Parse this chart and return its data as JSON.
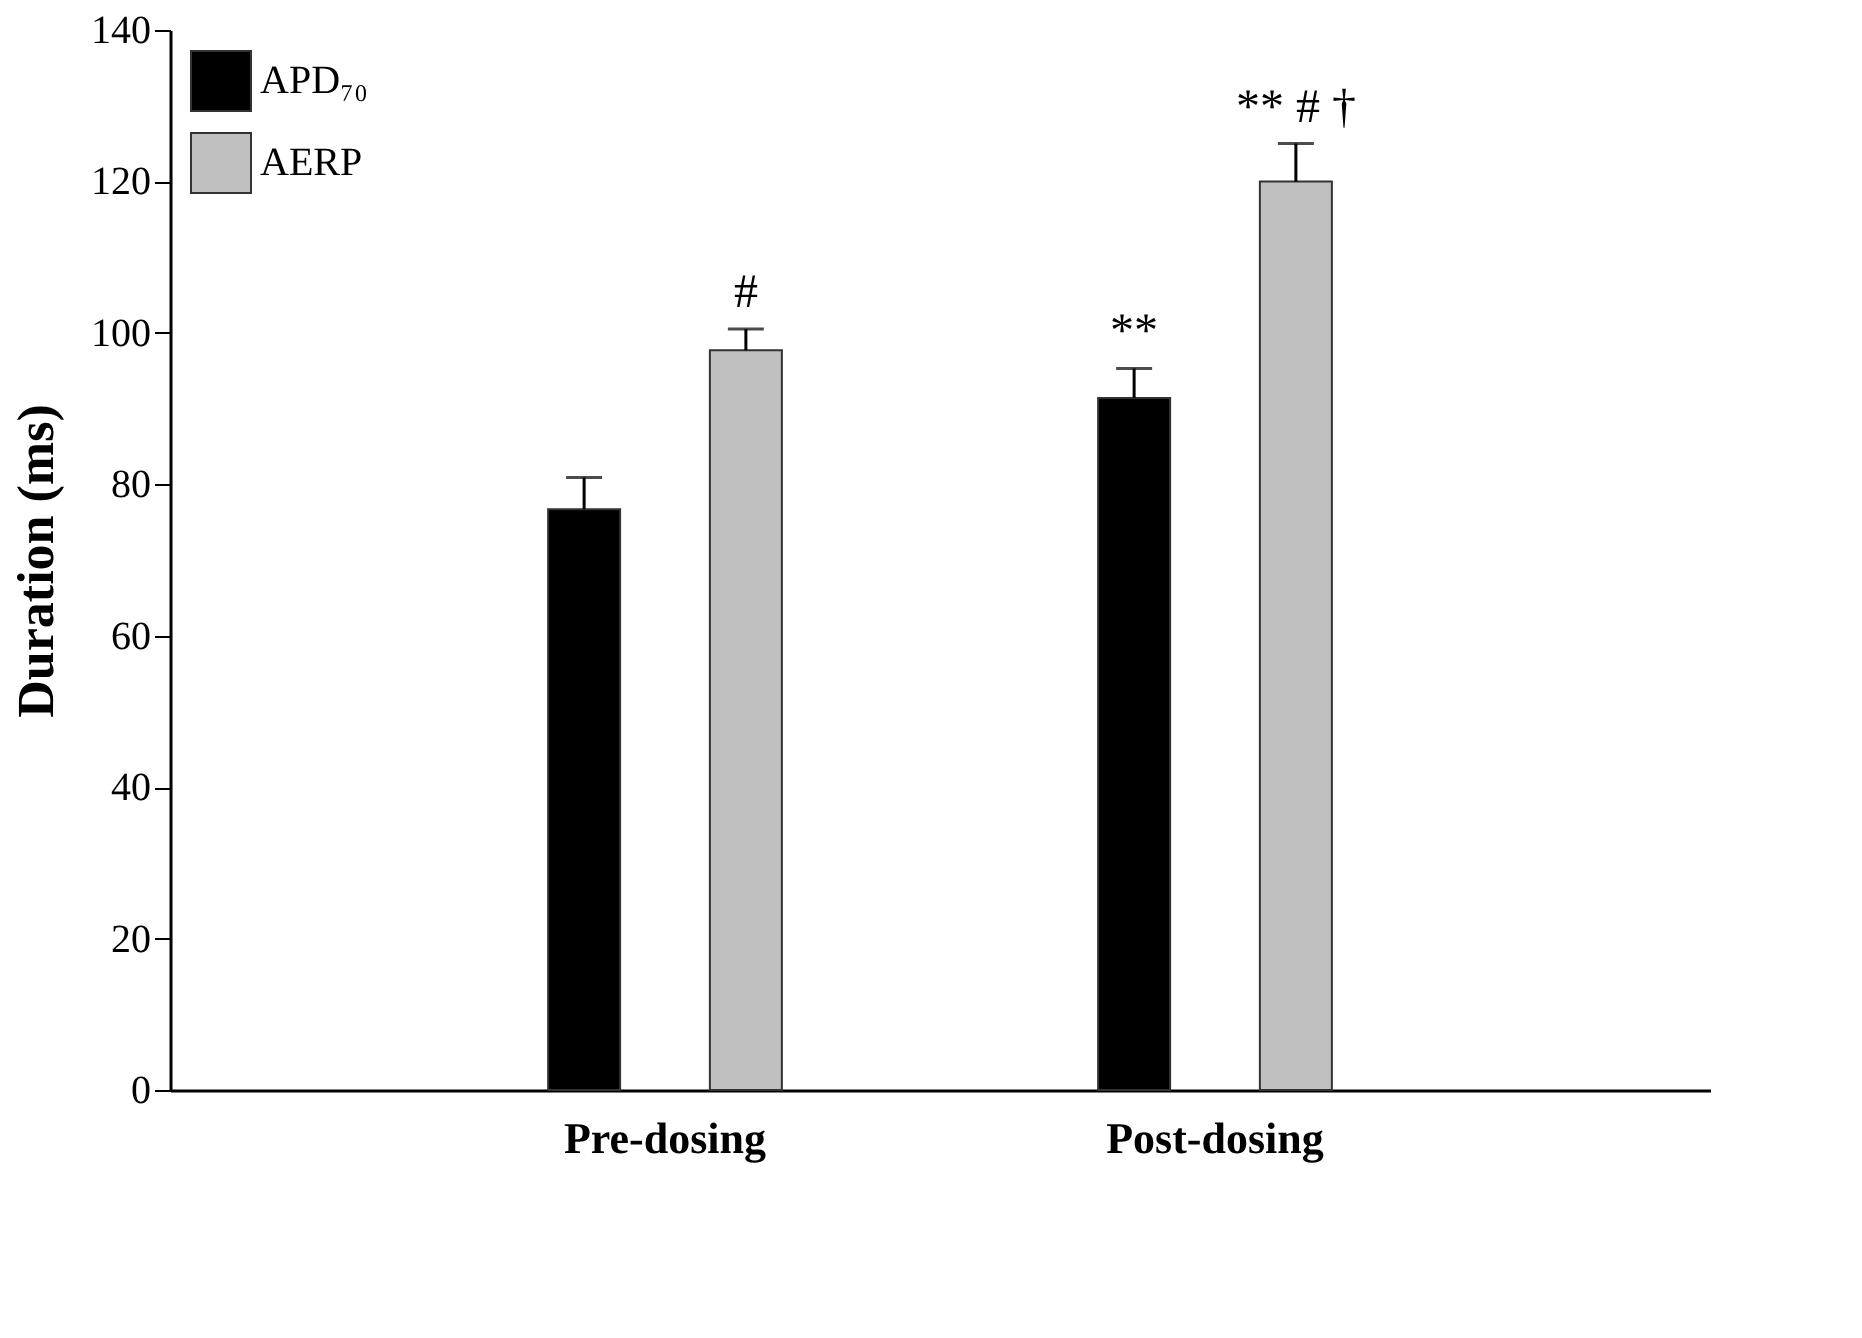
{
  "chart_data": {
    "type": "bar",
    "ylabel": "Duration (ms)",
    "categories": [
      "Pre-dosing",
      "Post-dosing"
    ],
    "series": [
      {
        "name": "APD₇₀",
        "color": "#000000",
        "values": [
          76.7,
          91.4
        ],
        "errors": [
          4.2,
          3.9
        ],
        "value_labels": [
          null,
          "**"
        ]
      },
      {
        "name": "AERP",
        "color": "#c0c0c0",
        "values": [
          97.7,
          120.0
        ],
        "errors": [
          2.8,
          5.0
        ],
        "value_labels": [
          "#",
          "** # †"
        ]
      }
    ],
    "ylim": [
      0,
      140
    ],
    "yticks": [
      0,
      20,
      40,
      60,
      80,
      100,
      120,
      140
    ],
    "grid": false,
    "legend": "top left"
  }
}
